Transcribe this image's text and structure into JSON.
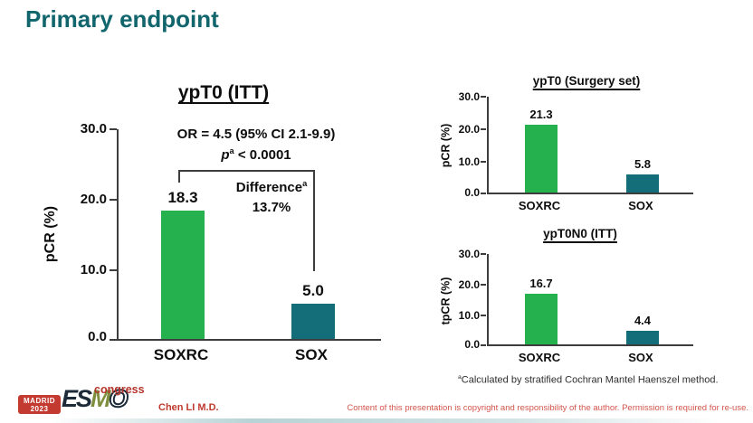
{
  "slide_title": "Primary endpoint",
  "chart_data": [
    {
      "type": "bar",
      "title": "ypT0 (ITT)",
      "ylabel": "pCR (%)",
      "ylim": [
        0,
        30
      ],
      "yticks": [
        "30.0",
        "20.0",
        "10.0",
        "0.0"
      ],
      "categories": [
        "SOXRC",
        "SOX"
      ],
      "values": [
        18.3,
        5.0
      ],
      "value_labels": [
        "18.3",
        "5.0"
      ],
      "bar_colors": [
        "#26b14f",
        "#136e79"
      ],
      "grid": false,
      "annotations": {
        "or_line": "OR = 4.5 (95% CI 2.1-9.9)",
        "p_symbol": "p",
        "p_sup": "a",
        "p_rest": "< 0.0001",
        "difference_label": "Difference",
        "difference_sup": "a",
        "difference_value": "13.7%"
      }
    },
    {
      "type": "bar",
      "title": "ypT0 (Surgery set)",
      "ylabel": "pCR (%)",
      "ylim": [
        0,
        30
      ],
      "yticks": [
        "30.0",
        "20.0",
        "10.0",
        "0.0"
      ],
      "categories": [
        "SOXRC",
        "SOX"
      ],
      "values": [
        21.3,
        5.8
      ],
      "value_labels": [
        "21.3",
        "5.8"
      ],
      "bar_colors": [
        "#26b14f",
        "#136e79"
      ],
      "grid": false
    },
    {
      "type": "bar",
      "title": "ypT0N0 (ITT)",
      "ylabel": "tpCR (%)",
      "ylim": [
        0,
        30
      ],
      "yticks": [
        "30.0",
        "20.0",
        "10.0",
        "0.0"
      ],
      "categories": [
        "SOXRC",
        "SOX"
      ],
      "values": [
        16.7,
        4.4
      ],
      "value_labels": [
        "16.7",
        "4.4"
      ],
      "bar_colors": [
        "#26b14f",
        "#136e79"
      ],
      "grid": false
    }
  ],
  "footnote": {
    "sup": "a",
    "text": "Calculated by stratified Cochran Mantel Haenszel method."
  },
  "footer": {
    "logo_city": "MADRID",
    "logo_year": "2023",
    "logo_es": "ES",
    "logo_m": "M",
    "logo_o": "O",
    "logo_congress": "congress",
    "author": "Chen LI M.D.",
    "copyright": "Content of this presentation is copyright and responsibility of the author. Permission is required for re-use."
  },
  "colors": {
    "title_teal": "#11656c",
    "bar_green": "#26b14f",
    "bar_teal": "#136e79",
    "footer_red": "#c0392e"
  }
}
